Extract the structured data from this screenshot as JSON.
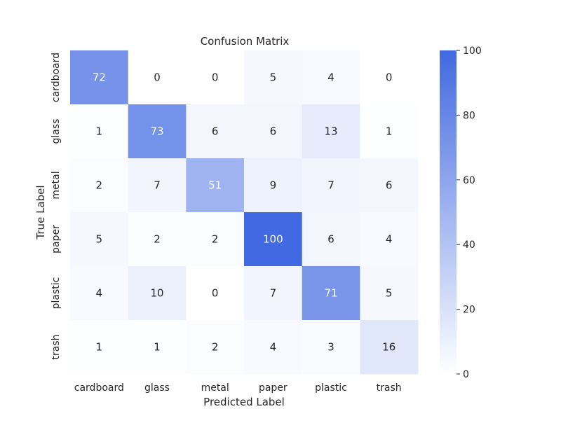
{
  "chart_data": {
    "type": "heatmap",
    "title": "Confusion Matrix",
    "xlabel": "Predicted Label",
    "ylabel": "True Label",
    "x_categories": [
      "cardboard",
      "glass",
      "metal",
      "paper",
      "plastic",
      "trash"
    ],
    "y_categories": [
      "cardboard",
      "glass",
      "metal",
      "paper",
      "plastic",
      "trash"
    ],
    "values": [
      [
        72,
        0,
        0,
        5,
        4,
        0
      ],
      [
        1,
        73,
        6,
        6,
        13,
        1
      ],
      [
        2,
        7,
        51,
        9,
        7,
        6
      ],
      [
        5,
        2,
        2,
        100,
        6,
        4
      ],
      [
        4,
        10,
        0,
        7,
        71,
        5
      ],
      [
        1,
        1,
        2,
        4,
        3,
        16
      ]
    ],
    "colorbar": {
      "min": 0,
      "max": 100,
      "ticks": [
        0,
        20,
        40,
        60,
        80,
        100
      ],
      "color_low": "#ffffff",
      "color_high": "#4169e1"
    },
    "annotation_dark_color": "#262626",
    "annotation_light_color": "#ffffff",
    "grid": false
  }
}
